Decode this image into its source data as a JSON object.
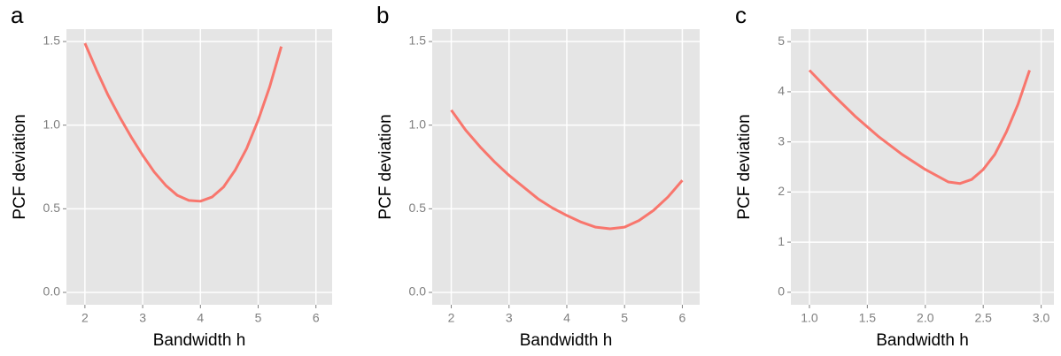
{
  "chart_data": [
    {
      "type": "line",
      "title": "a",
      "x_label": "Bandwidth  h",
      "y_label": "PCF deviation",
      "x": [
        2,
        2.2,
        2.4,
        2.6,
        2.8,
        3.0,
        3.2,
        3.4,
        3.6,
        3.8,
        4.0,
        4.2,
        4.4,
        4.6,
        4.8,
        5.0,
        5.2,
        5.4
      ],
      "series": [
        {
          "color": "#f8766d",
          "values": [
            1.49,
            1.33,
            1.18,
            1.05,
            0.93,
            0.82,
            0.72,
            0.64,
            0.58,
            0.55,
            0.545,
            0.57,
            0.63,
            0.73,
            0.86,
            1.03,
            1.23,
            1.47
          ]
        }
      ],
      "xlim": [
        1.68,
        6.28
      ],
      "xticks": [
        2,
        3,
        4,
        5,
        6
      ],
      "ylim": [
        -0.074,
        1.574
      ],
      "yticks": [
        {
          "value": 0,
          "label": "0.0"
        },
        0.5,
        {
          "value": 1,
          "label": "1.0"
        },
        1.5
      ],
      "grid": true
    },
    {
      "type": "line",
      "title": "b",
      "x_label": "Bandwidth  h",
      "y_label": "PCF deviation",
      "x": [
        2,
        2.25,
        2.5,
        2.75,
        3,
        3.25,
        3.5,
        3.75,
        4,
        4.25,
        4.5,
        4.75,
        5,
        5.25,
        5.5,
        5.75,
        6
      ],
      "series": [
        {
          "color": "#f8766d",
          "values": [
            1.09,
            0.97,
            0.87,
            0.78,
            0.7,
            0.63,
            0.56,
            0.505,
            0.46,
            0.42,
            0.39,
            0.38,
            0.39,
            0.43,
            0.49,
            0.57,
            0.67
          ]
        }
      ],
      "xlim": [
        1.67,
        6.3
      ],
      "xticks": [
        2,
        3,
        4,
        5,
        6
      ],
      "ylim": [
        -0.074,
        1.574
      ],
      "yticks": [
        {
          "value": 0,
          "label": "0.0"
        },
        0.5,
        {
          "value": 1,
          "label": "1.0"
        },
        1.5
      ],
      "grid": true
    },
    {
      "type": "line",
      "title": "c",
      "x_label": "Bandwidth  h",
      "y_label": "PCF deviation",
      "x": [
        1.0,
        1.2,
        1.4,
        1.6,
        1.8,
        2.0,
        2.2,
        2.3,
        2.4,
        2.5,
        2.6,
        2.7,
        2.8,
        2.9
      ],
      "series": [
        {
          "color": "#f8766d",
          "values": [
            4.43,
            3.95,
            3.5,
            3.1,
            2.75,
            2.45,
            2.2,
            2.17,
            2.25,
            2.45,
            2.75,
            3.2,
            3.75,
            4.43
          ]
        }
      ],
      "xlim": [
        0.84,
        3.11
      ],
      "xticks": [
        {
          "value": 1,
          "label": "1.0"
        },
        1.5,
        {
          "value": 2,
          "label": "2.0"
        },
        2.5,
        {
          "value": 3,
          "label": "3.0"
        }
      ],
      "ylim": [
        -0.25,
        5.25
      ],
      "yticks": [
        0,
        1,
        2,
        3,
        4,
        5
      ],
      "grid": true
    }
  ]
}
